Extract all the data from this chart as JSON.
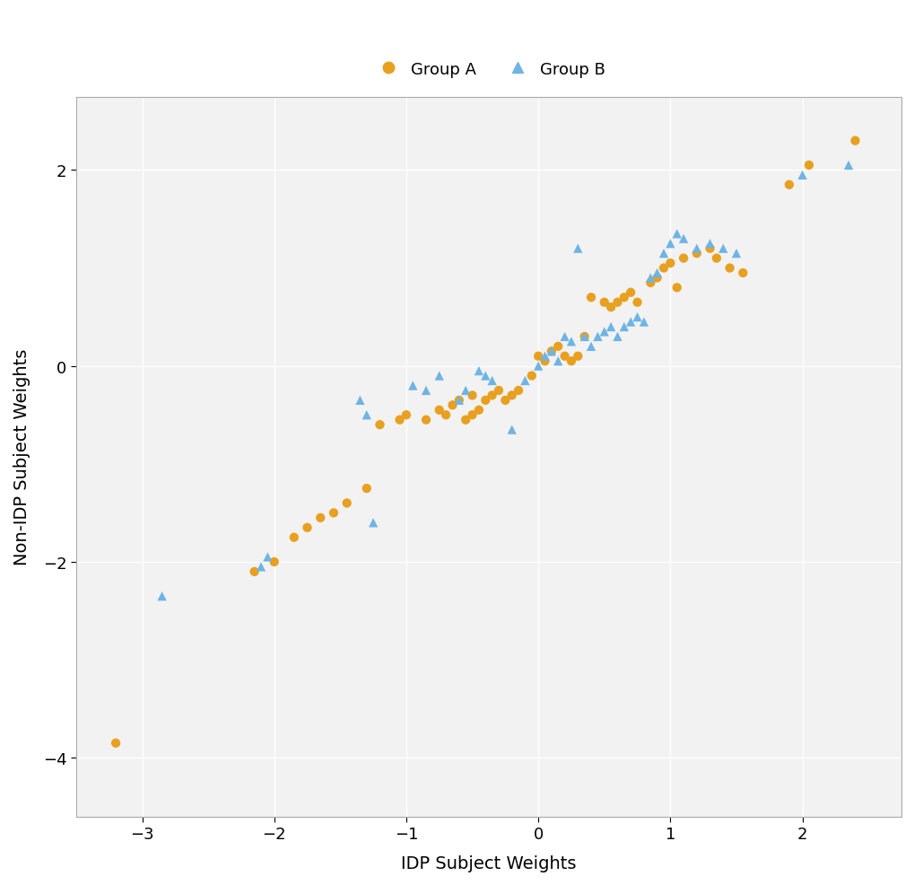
{
  "group_a_x": [
    -3.2,
    -2.15,
    -2.0,
    -1.85,
    -1.75,
    -1.65,
    -1.55,
    -1.45,
    -1.3,
    -1.2,
    -1.05,
    -1.0,
    -0.85,
    -0.75,
    -0.7,
    -0.65,
    -0.6,
    -0.55,
    -0.5,
    -0.5,
    -0.45,
    -0.4,
    -0.35,
    -0.3,
    -0.25,
    -0.2,
    -0.15,
    -0.05,
    0.0,
    0.05,
    0.1,
    0.15,
    0.2,
    0.25,
    0.3,
    0.35,
    0.4,
    0.5,
    0.55,
    0.6,
    0.65,
    0.7,
    0.75,
    0.85,
    0.9,
    0.95,
    1.0,
    1.05,
    1.1,
    1.2,
    1.3,
    1.35,
    1.45,
    1.55,
    1.9,
    2.05,
    2.4
  ],
  "group_a_y": [
    -3.85,
    -2.1,
    -2.0,
    -1.75,
    -1.65,
    -1.55,
    -1.5,
    -1.4,
    -1.25,
    -0.6,
    -0.55,
    -0.5,
    -0.55,
    -0.45,
    -0.5,
    -0.4,
    -0.35,
    -0.55,
    -0.5,
    -0.3,
    -0.45,
    -0.35,
    -0.3,
    -0.25,
    -0.35,
    -0.3,
    -0.25,
    -0.1,
    0.1,
    0.05,
    0.15,
    0.2,
    0.1,
    0.05,
    0.1,
    0.3,
    0.7,
    0.65,
    0.6,
    0.65,
    0.7,
    0.75,
    0.65,
    0.85,
    0.9,
    1.0,
    1.05,
    0.8,
    1.1,
    1.15,
    1.2,
    1.1,
    1.0,
    0.95,
    1.85,
    2.05,
    2.3
  ],
  "group_b_x": [
    -2.85,
    -2.1,
    -2.05,
    -1.35,
    -1.3,
    -1.25,
    -0.95,
    -0.85,
    -0.75,
    -0.6,
    -0.55,
    -0.45,
    -0.4,
    -0.35,
    -0.2,
    -0.1,
    0.0,
    0.05,
    0.1,
    0.15,
    0.2,
    0.25,
    0.3,
    0.35,
    0.4,
    0.45,
    0.5,
    0.55,
    0.6,
    0.65,
    0.7,
    0.75,
    0.8,
    0.85,
    0.9,
    0.95,
    1.0,
    1.05,
    1.1,
    1.2,
    1.3,
    1.4,
    1.5,
    2.0,
    2.35
  ],
  "group_b_y": [
    -2.35,
    -2.05,
    -1.95,
    -0.35,
    -0.5,
    -1.6,
    -0.2,
    -0.25,
    -0.1,
    -0.35,
    -0.25,
    -0.05,
    -0.1,
    -0.15,
    -0.65,
    -0.15,
    0.0,
    0.1,
    0.15,
    0.05,
    0.3,
    0.25,
    1.2,
    0.3,
    0.2,
    0.3,
    0.35,
    0.4,
    0.3,
    0.4,
    0.45,
    0.5,
    0.45,
    0.9,
    0.95,
    1.15,
    1.25,
    1.35,
    1.3,
    1.2,
    1.25,
    1.2,
    1.15,
    1.95,
    2.05
  ],
  "group_a_color": "#E8A020",
  "group_b_color": "#6EB4E4",
  "xlabel": "IDP Subject Weights",
  "ylabel": "Non-IDP Subject Weights",
  "xlim": [
    -3.5,
    2.75
  ],
  "ylim": [
    -4.6,
    2.75
  ],
  "xticks": [
    -3,
    -2,
    -1,
    0,
    1,
    2
  ],
  "yticks": [
    -4,
    -2,
    0,
    2
  ],
  "marker_size": 55,
  "legend_label_a": "Group A",
  "legend_label_b": "Group B",
  "background_color": "#FFFFFF",
  "plot_bg_color": "#F2F2F2",
  "grid_color": "#FFFFFF",
  "axis_label_fontsize": 14,
  "tick_fontsize": 13,
  "legend_fontsize": 13
}
